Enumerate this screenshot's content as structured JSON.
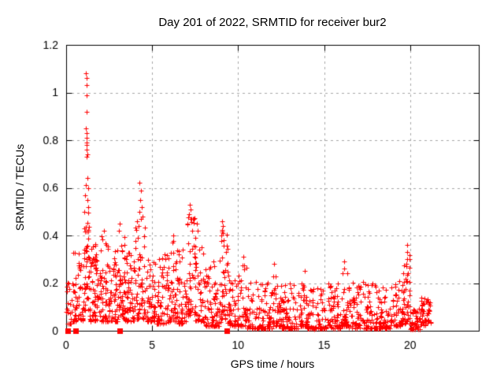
{
  "chart_data": {
    "type": "scatter",
    "title": "Day 201 of 2022, SRMTID for receiver bur2",
    "xlabel": "GPS time / hours",
    "ylabel": "SRMTID / TECUs",
    "xlim": [
      0,
      24
    ],
    "ylim": [
      0,
      1.2
    ],
    "xticks": [
      0,
      5,
      10,
      15,
      20
    ],
    "xtick_labels": [
      "0",
      "5",
      "10",
      "15",
      "20"
    ],
    "yticks": [
      0,
      0.2,
      0.4,
      0.6,
      0.8,
      1,
      1.2
    ],
    "ytick_labels": [
      "0",
      "0.2",
      "0.4",
      "0.6",
      "0.8",
      "1",
      "1.2"
    ],
    "grid": true,
    "grid_color": "#a8a8a8",
    "axis_color": "#000000",
    "background": "#ffffff",
    "legend": "none",
    "series": [
      {
        "name": "srmtid-points",
        "marker": "plus",
        "color": "#ff0000",
        "seed": 42,
        "outliers": [
          [
            1.16,
            1.08
          ],
          [
            1.18,
            1.06
          ],
          [
            1.17,
            1.03
          ],
          [
            1.19,
            0.99
          ],
          [
            1.17,
            0.92
          ],
          [
            1.16,
            0.85
          ],
          [
            1.18,
            0.83
          ],
          [
            1.2,
            0.81
          ],
          [
            1.17,
            0.79
          ],
          [
            1.21,
            0.78
          ],
          [
            1.19,
            0.76
          ],
          [
            1.22,
            0.74
          ],
          [
            1.18,
            0.73
          ],
          [
            1.25,
            0.64
          ],
          [
            1.13,
            0.61
          ],
          [
            1.28,
            0.6
          ],
          [
            1.1,
            0.57
          ],
          [
            1.22,
            0.55
          ],
          [
            1.3,
            0.52
          ],
          [
            1.05,
            0.5
          ],
          [
            4.28,
            0.62
          ],
          [
            4.33,
            0.59
          ],
          [
            4.3,
            0.55
          ],
          [
            4.38,
            0.52
          ],
          [
            4.25,
            0.5
          ],
          [
            4.45,
            0.48
          ],
          [
            7.18,
            0.53
          ],
          [
            7.22,
            0.51
          ],
          [
            7.15,
            0.49
          ],
          [
            7.3,
            0.47
          ],
          [
            7.6,
            0.45
          ],
          [
            7.65,
            0.42
          ],
          [
            9.08,
            0.46
          ],
          [
            9.12,
            0.44
          ],
          [
            9.1,
            0.41
          ],
          [
            9.15,
            0.38
          ],
          [
            3.12,
            0.45
          ],
          [
            3.08,
            0.42
          ],
          [
            2.2,
            0.42
          ],
          [
            6.25,
            0.4
          ],
          [
            6.2,
            0.37
          ],
          [
            10.3,
            0.31
          ],
          [
            12.1,
            0.28
          ],
          [
            13.9,
            0.25
          ],
          [
            16.15,
            0.29
          ],
          [
            16.18,
            0.26
          ],
          [
            19.82,
            0.36
          ],
          [
            19.85,
            0.33
          ],
          [
            19.84,
            0.3
          ],
          [
            19.8,
            0.27
          ],
          [
            19.88,
            0.24
          ],
          [
            14.42,
            0.005
          ],
          [
            14.5,
            0.01
          ],
          [
            0.15,
            0.2
          ]
        ],
        "bins": [
          [
            0.0,
            0.35,
            18,
            0.03,
            0.25,
            2.0
          ],
          [
            0.35,
            1.0,
            55,
            0.04,
            0.33,
            2.0
          ],
          [
            1.0,
            1.35,
            45,
            0.08,
            0.5,
            1.3
          ],
          [
            1.35,
            2.0,
            70,
            0.04,
            0.38,
            2.0
          ],
          [
            2.0,
            2.6,
            65,
            0.04,
            0.4,
            2.0
          ],
          [
            2.6,
            3.0,
            45,
            0.04,
            0.35,
            2.0
          ],
          [
            3.0,
            3.4,
            45,
            0.05,
            0.43,
            1.8
          ],
          [
            3.4,
            4.0,
            60,
            0.04,
            0.33,
            2.0
          ],
          [
            4.0,
            4.6,
            60,
            0.05,
            0.48,
            2.2
          ],
          [
            4.6,
            5.2,
            55,
            0.04,
            0.3,
            2.0
          ],
          [
            5.2,
            6.0,
            70,
            0.03,
            0.32,
            2.0
          ],
          [
            6.0,
            6.5,
            45,
            0.04,
            0.38,
            2.0
          ],
          [
            6.5,
            7.0,
            45,
            0.03,
            0.34,
            2.0
          ],
          [
            7.0,
            7.45,
            45,
            0.06,
            0.5,
            1.6
          ],
          [
            7.45,
            8.0,
            50,
            0.04,
            0.4,
            2.2
          ],
          [
            8.0,
            9.0,
            80,
            0.02,
            0.3,
            2.2
          ],
          [
            9.0,
            9.4,
            40,
            0.05,
            0.44,
            1.7
          ],
          [
            9.4,
            10.0,
            50,
            0.02,
            0.24,
            2.0
          ],
          [
            10.0,
            10.5,
            40,
            0.02,
            0.28,
            2.5
          ],
          [
            10.5,
            12.0,
            100,
            0.01,
            0.21,
            2.5
          ],
          [
            12.0,
            12.4,
            35,
            0.02,
            0.26,
            2.5
          ],
          [
            12.4,
            13.5,
            80,
            0.01,
            0.2,
            2.5
          ],
          [
            13.5,
            14.0,
            40,
            0.02,
            0.24,
            2.5
          ],
          [
            14.0,
            15.0,
            70,
            0.01,
            0.18,
            2.5
          ],
          [
            15.0,
            16.0,
            70,
            0.01,
            0.21,
            2.5
          ],
          [
            16.0,
            16.4,
            35,
            0.02,
            0.27,
            2.5
          ],
          [
            16.4,
            17.5,
            80,
            0.01,
            0.22,
            2.5
          ],
          [
            17.5,
            19.0,
            100,
            0.01,
            0.21,
            2.5
          ],
          [
            19.0,
            19.6,
            45,
            0.02,
            0.22,
            2.5
          ],
          [
            19.6,
            20.0,
            40,
            0.03,
            0.32,
            1.8
          ],
          [
            20.0,
            20.6,
            45,
            0.005,
            0.1,
            2.0
          ],
          [
            20.6,
            21.2,
            50,
            0.02,
            0.14,
            1.5
          ]
        ]
      },
      {
        "name": "flag-squares",
        "marker": "square",
        "color": "#ff0000",
        "points": [
          [
            0.1,
            0
          ],
          [
            0.55,
            0
          ],
          [
            3.1,
            0
          ],
          [
            9.35,
            0
          ]
        ]
      }
    ]
  }
}
